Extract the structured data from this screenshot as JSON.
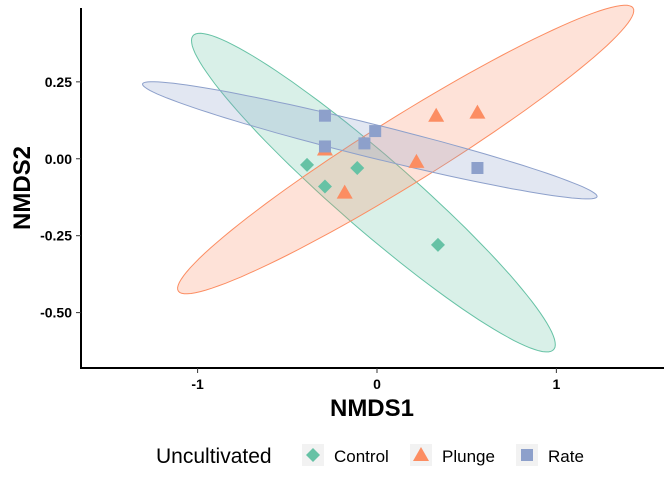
{
  "chart_data": {
    "type": "scatter",
    "title": "",
    "xlabel": "NMDS1",
    "ylabel": "NMDS2",
    "xlim": [
      -1.65,
      1.6
    ],
    "ylim": [
      -0.68,
      0.49
    ],
    "xticks": [
      -1,
      0,
      1
    ],
    "xtick_labels": [
      "-1",
      "0",
      "1"
    ],
    "yticks": [
      0.25,
      0,
      -0.25,
      -0.5
    ],
    "ytick_labels": [
      "0.25",
      "0.00",
      "-0.25",
      "-0.50"
    ],
    "grid": false,
    "legend": {
      "title": "Uncultivated",
      "position": "bottom"
    },
    "series": [
      {
        "name": "Control",
        "marker": "diamond",
        "color": "#66c2a5",
        "points": [
          {
            "x": -0.39,
            "y": -0.02
          },
          {
            "x": -0.29,
            "y": -0.09
          },
          {
            "x": -0.11,
            "y": -0.03
          },
          {
            "x": 0.34,
            "y": -0.28
          }
        ],
        "ellipse": {
          "cx": -0.02,
          "cy": -0.11,
          "rx": 1.13,
          "ry": 0.14,
          "angle_deg": -26.4
        }
      },
      {
        "name": "Plunge",
        "marker": "triangle",
        "color": "#fc8d62",
        "points": [
          {
            "x": -0.29,
            "y": 0.03
          },
          {
            "x": -0.18,
            "y": -0.11
          },
          {
            "x": 0.22,
            "y": -0.01
          },
          {
            "x": 0.33,
            "y": 0.14
          },
          {
            "x": 0.56,
            "y": 0.15
          }
        ],
        "ellipse": {
          "cx": 0.16,
          "cy": 0.03,
          "rx": 1.35,
          "ry": 0.12,
          "angle_deg": 19.7
        }
      },
      {
        "name": "Rate",
        "marker": "square",
        "color": "#8da0cb",
        "points": [
          {
            "x": -0.29,
            "y": 0.14
          },
          {
            "x": -0.29,
            "y": 0.04
          },
          {
            "x": -0.07,
            "y": 0.05
          },
          {
            "x": -0.01,
            "y": 0.09
          },
          {
            "x": 0.56,
            "y": -0.03
          }
        ],
        "ellipse": {
          "cx": -0.04,
          "cy": 0.06,
          "rx": 1.28,
          "ry": 0.055,
          "angle_deg": -8.2
        }
      }
    ]
  }
}
